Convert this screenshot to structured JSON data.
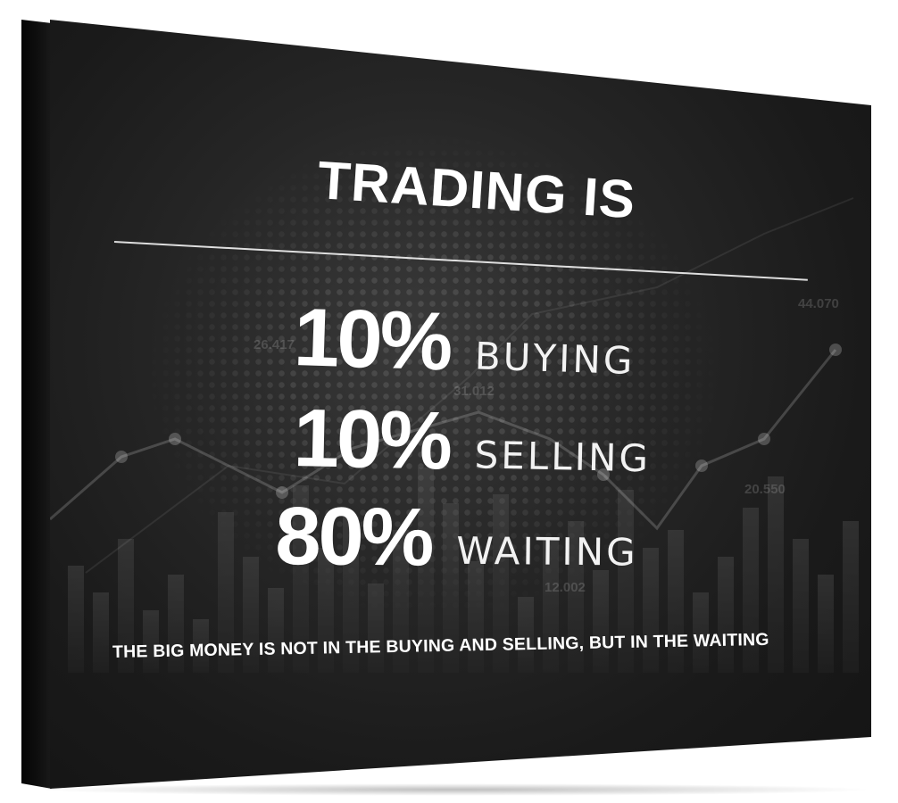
{
  "poster": {
    "title": "TRADING IS",
    "stats": [
      {
        "percent": "10%",
        "label": "BUYING"
      },
      {
        "percent": "10%",
        "label": "SELLING"
      },
      {
        "percent": "80%",
        "label": "WAITING"
      }
    ],
    "tagline": "THE BIG MONEY IS NOT IN THE BUYING AND SELLING, BUT IN THE WAITING",
    "background_numbers": [
      "26.417",
      "31.012",
      "44.070",
      "20.550",
      "12.002"
    ]
  },
  "colors": {
    "background": "#1a1a1a",
    "text": "#ffffff",
    "frame": "#ffffff"
  }
}
